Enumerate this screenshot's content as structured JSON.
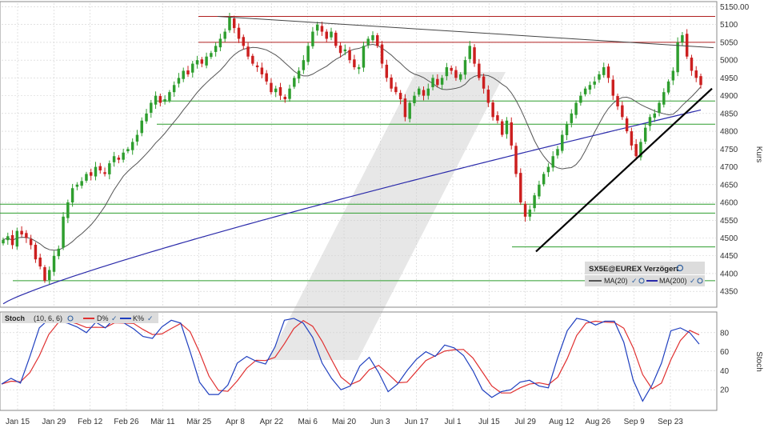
{
  "chart_data": {
    "type": "candlestick",
    "instrument": "SX5E@EUREX Verzögert",
    "main": {
      "ylabel": "Kurs",
      "ylim": [
        4310,
        5160
      ],
      "yticks": [
        4350,
        4400,
        4450,
        4500,
        4550,
        4600,
        4650,
        4700,
        4750,
        4800,
        4850,
        4900,
        4950,
        5000,
        5050,
        5100,
        5150
      ],
      "ytick_labels": [
        "4350",
        "4400",
        "4450",
        "4500",
        "4550",
        "4600",
        "4650",
        "4700",
        "4750",
        "4800",
        "4850",
        "4900",
        "4950",
        "5000",
        "5050",
        "5100",
        "5150.00"
      ],
      "series_names": [
        "MA(20)",
        "MA(200)"
      ],
      "horizontal_red": [
        5123,
        5050
      ],
      "horizontal_green": [
        4885,
        4820,
        4595,
        4570,
        4475,
        4380
      ],
      "down_trendline": [
        [
          "Mär 27",
          5123
        ],
        [
          "Sep 30",
          5035
        ]
      ],
      "up_trendline": [
        [
          "Aug 5",
          4462
        ],
        [
          "Okt 4",
          4920
        ]
      ],
      "candles_close": [
        4495,
        4505,
        4480,
        4520,
        4510,
        4500,
        4480,
        4440,
        4420,
        4380,
        4410,
        4450,
        4470,
        4560,
        4600,
        4640,
        4650,
        4660,
        4680,
        4675,
        4700,
        4690,
        4680,
        4710,
        4730,
        4720,
        4740,
        4750,
        4770,
        4790,
        4830,
        4850,
        4880,
        4900,
        4880,
        4890,
        4910,
        4930,
        4950,
        4970,
        4960,
        4990,
        5000,
        4990,
        5010,
        5020,
        5040,
        5060,
        5080,
        5120,
        5090,
        5060,
        5040,
        5010,
        4990,
        4980,
        4960,
        4940,
        4910,
        4920,
        4900,
        4890,
        4920,
        4950,
        4970,
        5000,
        5040,
        5080,
        5100,
        5080,
        5060,
        5080,
        5040,
        5020,
        5030,
        5000,
        4980,
        4980,
        5040,
        5060,
        5070,
        5040,
        4990,
        4950,
        4920,
        4910,
        4890,
        4840,
        4880,
        4900,
        4920,
        4900,
        4920,
        4950,
        4930,
        4950,
        4980,
        4970,
        4950,
        4960,
        5000,
        5040,
        4990,
        4950,
        4920,
        4880,
        4840,
        4830,
        4790,
        4830,
        4760,
        4680,
        4600,
        4560,
        4580,
        4620,
        4650,
        4680,
        4700,
        4730,
        4750,
        4790,
        4820,
        4850,
        4880,
        4900,
        4920,
        4930,
        4940,
        4960,
        4980,
        4950,
        4900,
        4870,
        4840,
        4800,
        4760,
        4730,
        4770,
        4810,
        4840,
        4850,
        4880,
        4910,
        4940,
        4970,
        5050,
        5070,
        5010,
        4970,
        4950,
        4930
      ]
    },
    "stoch": {
      "label": "Stoch",
      "params": "(10, 6, 6)",
      "ylabel": "Stoch",
      "ylim": [
        0,
        100
      ],
      "yticks": [
        20,
        40,
        60,
        80
      ],
      "series_names": [
        "D%",
        "K%"
      ],
      "k_values": [
        26,
        32,
        27,
        55,
        85,
        94,
        92,
        90,
        86,
        80,
        91,
        85,
        95,
        90,
        84,
        76,
        74,
        86,
        93,
        90,
        60,
        28,
        15,
        15,
        25,
        48,
        55,
        50,
        47,
        65,
        93,
        95,
        90,
        75,
        48,
        32,
        20,
        24,
        45,
        54,
        38,
        18,
        26,
        40,
        52,
        60,
        55,
        67,
        64,
        56,
        40,
        20,
        12,
        18,
        20,
        28,
        30,
        24,
        22,
        54,
        82,
        95,
        93,
        88,
        92,
        92,
        70,
        30,
        8,
        25,
        48,
        82,
        85,
        80,
        68
      ]
    },
    "x_ticks": [
      "Jan 15",
      "Jan 29",
      "Feb 12",
      "Feb 26",
      "Mär 11",
      "Mär 25",
      "Apr 8",
      "Apr 22",
      "Mai 6",
      "Mai 20",
      "Jun 3",
      "Jun 17",
      "Jul 1",
      "Jul 15",
      "Jul 29",
      "Aug 12",
      "Aug 26",
      "Sep 9",
      "Sep 23"
    ],
    "colors": {
      "up": "#2e9e2e",
      "down": "#cc1f1f",
      "ma20": "#555555",
      "ma200": "#2a2aaa",
      "stoch_d": "#e03030",
      "stoch_k": "#1f3fbf",
      "hline_green": "#2e9e2e",
      "hline_red": "#b02020",
      "grid": "#d0d0d0"
    }
  }
}
